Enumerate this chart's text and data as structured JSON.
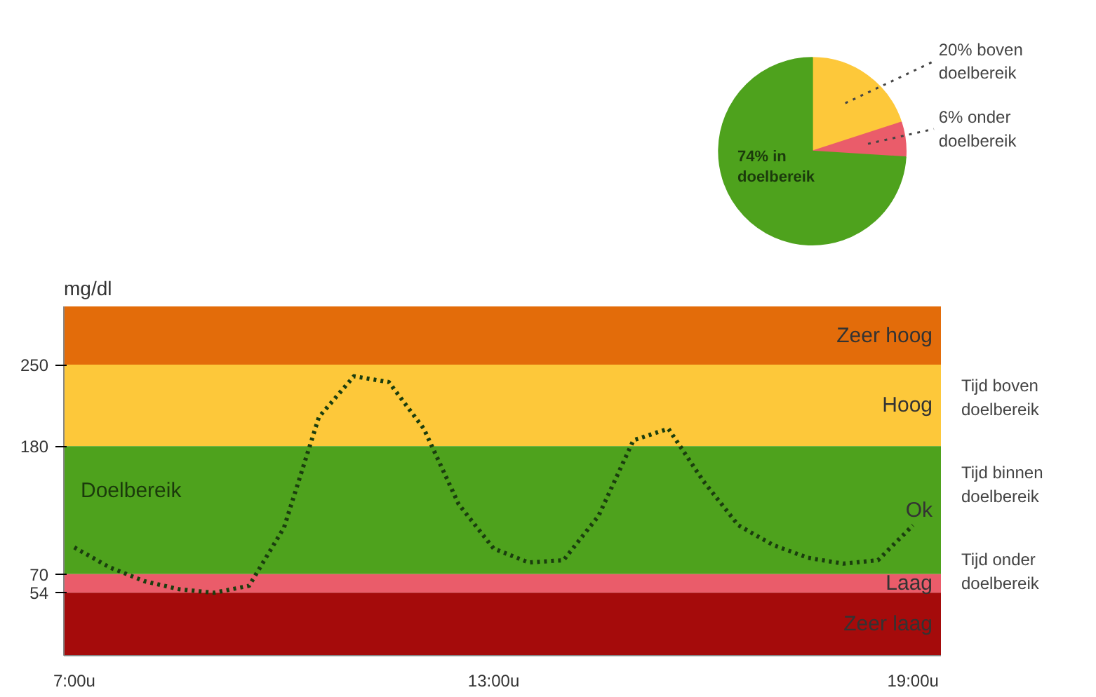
{
  "chart_data": [
    {
      "type": "pie",
      "categories": [
        null,
        null,
        null
      ],
      "values": [
        20,
        6,
        74
      ],
      "colors": [
        "#fdc83a",
        "#ea5c6a",
        "#4ea21d"
      ],
      "value_labels": [
        "20% boven doelbereik",
        "6% onder doelbereik",
        "74% in doelbereik"
      ]
    },
    {
      "type": "line",
      "ylabel": "mg/dl",
      "categories": [
        "7:00u",
        null,
        null,
        null,
        null,
        null,
        null,
        null,
        null,
        null,
        null,
        null,
        "13:00u",
        null,
        null,
        null,
        null,
        null,
        null,
        null,
        null,
        null,
        null,
        null,
        "19:00u"
      ],
      "series": [
        {
          "color": "#1a3d0e",
          "values": [
            93,
            76,
            64,
            57,
            54,
            60,
            110,
            205,
            240,
            235,
            195,
            130,
            92,
            80,
            82,
            120,
            185,
            195,
            150,
            112,
            95,
            84,
            79,
            82,
            112
          ]
        }
      ],
      "line_style": "dotted",
      "marker": "none",
      "grid": false,
      "ylim": [
        0,
        300
      ],
      "yticks": [
        54,
        70,
        180,
        250
      ],
      "bands": [
        {
          "axis": "y",
          "from": 250,
          "to": 300,
          "label": "Zeer hoog",
          "color": "#e36c0a"
        },
        {
          "axis": "y",
          "from": 180,
          "to": 250,
          "label": "Hoog",
          "color": "#fdc83a"
        },
        {
          "axis": "y",
          "from": 70,
          "to": 180,
          "label": "Ok",
          "color": "#4ea21d"
        },
        {
          "axis": "y",
          "from": 54,
          "to": 70,
          "label": "Laag",
          "color": "#ea5c6a"
        },
        {
          "axis": "y",
          "from": 0,
          "to": 54,
          "label": "Zeer laag",
          "color": "#a50b0b"
        }
      ],
      "annotations": [
        "Doelbereik",
        "Tijd boven doelbereik",
        "Tijd binnen doelbereik",
        "Tijd onder doelbereik"
      ]
    }
  ]
}
